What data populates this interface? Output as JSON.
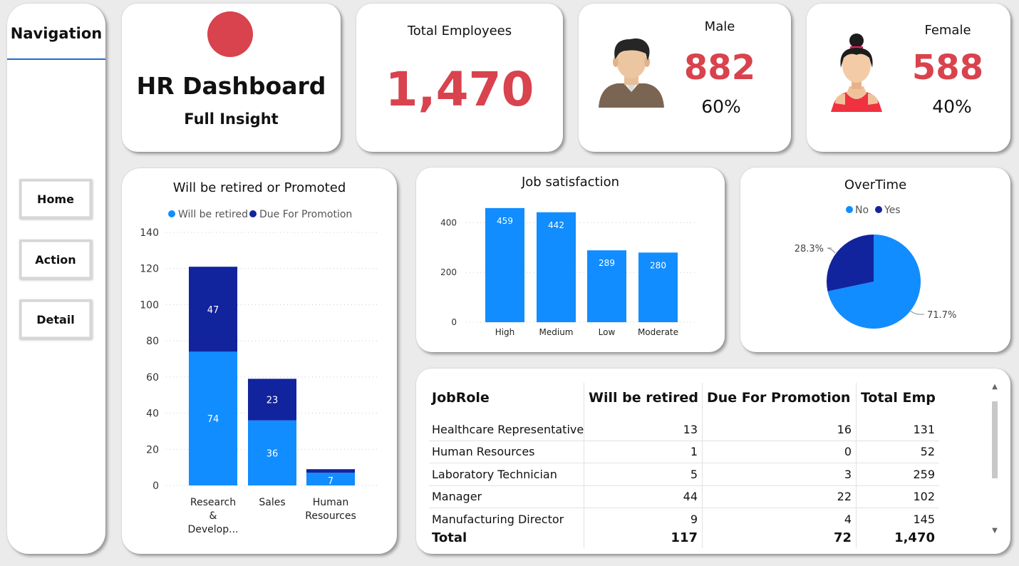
{
  "nav": {
    "title": "Navigation",
    "buttons": [
      "Home",
      "Action",
      "Detail"
    ]
  },
  "header": {
    "title": "HR Dashboard",
    "subtitle": "Full Insight",
    "accent_color": "#d8434d"
  },
  "kpis": {
    "total": {
      "label": "Total Employees",
      "value": "1,470"
    },
    "male": {
      "label": "Male",
      "value": "882",
      "pct": "60%"
    },
    "female": {
      "label": "Female",
      "value": "588",
      "pct": "40%"
    }
  },
  "colors": {
    "light_blue": "#118dff",
    "dark_blue": "#12239e",
    "kpi_red": "#d8434d"
  },
  "promo_chart": {
    "title": "Will be retired or Promoted",
    "legend": [
      "Will be retired",
      "Due For Promotion"
    ],
    "y_ticks": [
      "0",
      "20",
      "40",
      "60",
      "80",
      "100",
      "120",
      "140"
    ],
    "categories": [
      [
        "Research",
        "&",
        "Develop..."
      ],
      [
        "Sales"
      ],
      [
        "Human",
        "Resources"
      ]
    ]
  },
  "job_chart": {
    "title": "Job satisfaction",
    "y_ticks": [
      "0",
      "200",
      "400"
    ]
  },
  "overtime_chart": {
    "title": "OverTime",
    "legend": [
      "No",
      "Yes"
    ],
    "labels": [
      "71.7%",
      "28.3%"
    ]
  },
  "table": {
    "headers": [
      "JobRole",
      "Will be retired",
      "Due For Promotion",
      "Total Emp"
    ],
    "rows": [
      [
        "Healthcare Representative",
        "13",
        "16",
        "131"
      ],
      [
        "Human Resources",
        "1",
        "0",
        "52"
      ],
      [
        "Laboratory Technician",
        "5",
        "3",
        "259"
      ],
      [
        "Manager",
        "44",
        "22",
        "102"
      ],
      [
        "Manufacturing Director",
        "9",
        "4",
        "145"
      ]
    ],
    "total": [
      "Total",
      "117",
      "72",
      "1,470"
    ]
  },
  "chart_data": [
    {
      "type": "bar",
      "stacked": true,
      "title": "Will be retired or Promoted",
      "categories": [
        "Research & Develop...",
        "Sales",
        "Human Resources"
      ],
      "series": [
        {
          "name": "Will be retired",
          "values": [
            74,
            36,
            7
          ]
        },
        {
          "name": "Due For Promotion",
          "values": [
            47,
            23,
            2
          ]
        }
      ],
      "ylim": [
        0,
        140
      ],
      "legend": "top",
      "grid": true
    },
    {
      "type": "bar",
      "title": "Job satisfaction",
      "categories": [
        "High",
        "Medium",
        "Low",
        "Moderate"
      ],
      "values": [
        459,
        442,
        289,
        280
      ],
      "ylim": [
        0,
        470
      ],
      "grid": true
    },
    {
      "type": "pie",
      "title": "OverTime",
      "categories": [
        "No",
        "Yes"
      ],
      "values": [
        71.7,
        28.3
      ],
      "legend": "top"
    }
  ]
}
